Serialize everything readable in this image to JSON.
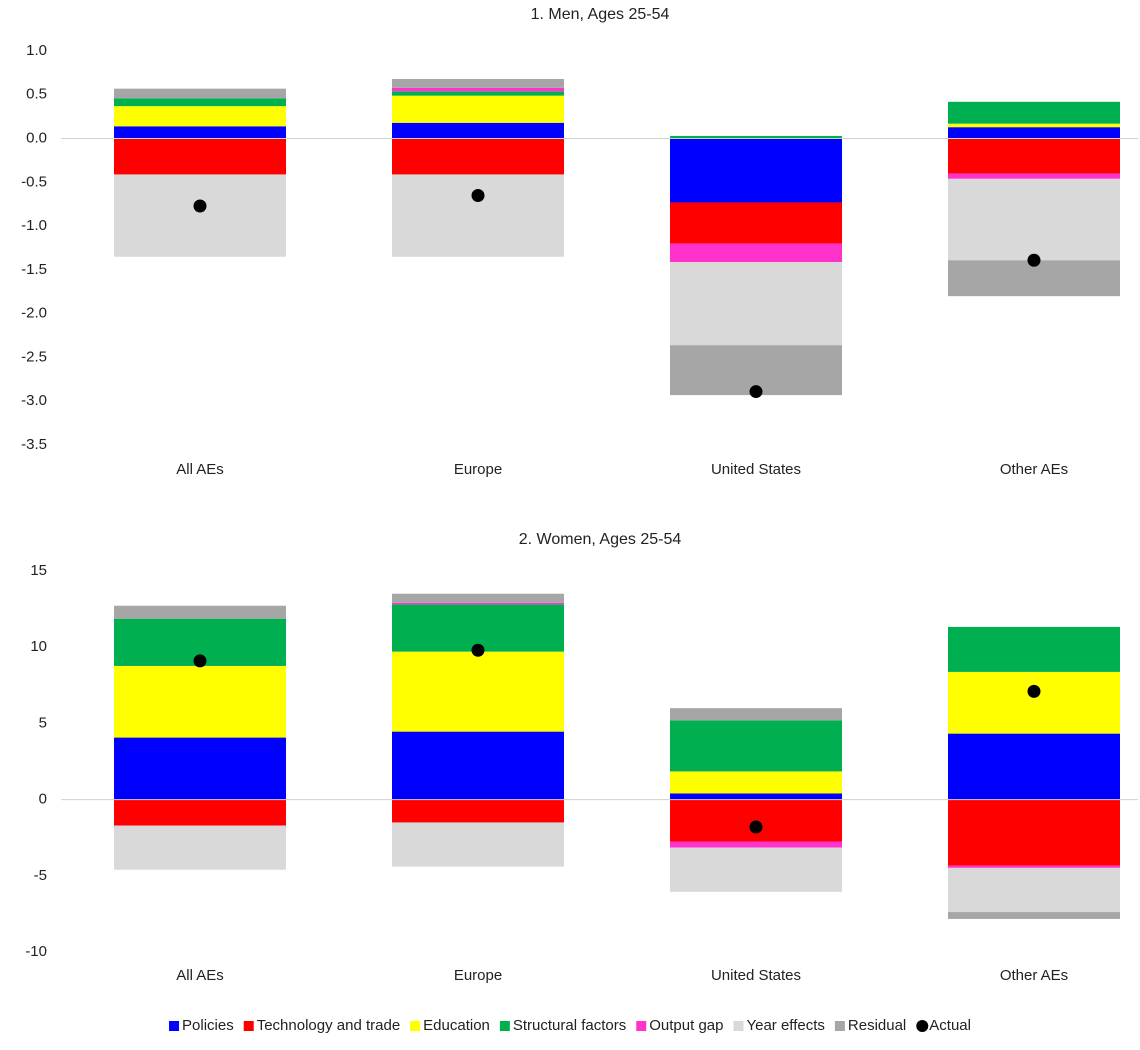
{
  "chart_data": [
    {
      "type": "bar",
      "title": "1. Men, Ages 25-54",
      "categories": [
        "All AEs",
        "Europe",
        "United States",
        "Other AEs"
      ],
      "ylim": [
        -3.5,
        1
      ],
      "yticks": [
        {
          "value": 1,
          "label": "1.0"
        },
        0.5,
        {
          "value": 0,
          "label": "0.0"
        },
        -0.5,
        {
          "value": -1,
          "label": "-1.0"
        },
        -1.5,
        {
          "value": -2,
          "label": "-2.0"
        },
        -2.5,
        {
          "value": -3,
          "label": "-3.0"
        },
        -3.5
      ],
      "series": [
        {
          "name": "Policies",
          "color": "#0000ff",
          "values": [
            0.14,
            0.18,
            -0.73,
            0.13
          ]
        },
        {
          "name": "Technology and trade",
          "color": "#ff0000",
          "values": [
            -0.41,
            -0.41,
            -0.47,
            -0.4
          ]
        },
        {
          "name": "Education",
          "color": "#ffff00",
          "values": [
            0.23,
            0.31,
            null,
            0.04
          ]
        },
        {
          "name": "Structural factors",
          "color": "#00b050",
          "values": [
            0.09,
            0.05,
            0.03,
            0.25
          ]
        },
        {
          "name": "Output gap",
          "color": "#ff33cc",
          "values": [
            null,
            0.04,
            -0.21,
            -0.06
          ]
        },
        {
          "name": "Year effects",
          "color": "#d9d9d9",
          "values": [
            -0.94,
            -0.94,
            -0.95,
            -0.93
          ]
        },
        {
          "name": "Residual",
          "color": "#a6a6a6",
          "values": [
            0.11,
            0.1,
            -0.57,
            -0.41
          ]
        },
        {
          "name": "Actual",
          "color": "#000000",
          "type": "scatter",
          "values": [
            -0.77,
            -0.65,
            -2.89,
            -1.39
          ]
        }
      ]
    },
    {
      "type": "bar",
      "title": "2. Women, Ages 25-54",
      "categories": [
        "All AEs",
        "Europe",
        "United States",
        "Other AEs"
      ],
      "ylim": [
        -10,
        15
      ],
      "yticks": [
        15,
        10,
        5,
        0,
        -5,
        -10
      ],
      "series": [
        {
          "color": "#0000ff",
          "values": [
            4.07,
            4.46,
            0.4,
            4.33
          ]
        },
        {
          "color": "#ff0000",
          "values": [
            -1.7,
            -1.5,
            -2.75,
            -4.33
          ]
        },
        {
          "color": "#ffff00",
          "values": [
            4.7,
            5.25,
            1.45,
            4.05
          ]
        },
        {
          "color": "#00b050",
          "values": [
            3.1,
            3.1,
            3.35,
            2.95
          ]
        },
        {
          "color": "#ff33cc",
          "values": [
            null,
            0.1,
            -0.4,
            -0.15
          ]
        },
        {
          "color": "#d9d9d9",
          "values": [
            -2.9,
            -2.9,
            -2.9,
            -2.9
          ]
        },
        {
          "color": "#a6a6a6",
          "values": [
            0.85,
            0.6,
            0.8,
            -0.45
          ]
        },
        {
          "color": "#000000",
          "type": "scatter",
          "values": [
            9.1,
            9.8,
            -1.8,
            7.1
          ]
        }
      ]
    }
  ]
}
